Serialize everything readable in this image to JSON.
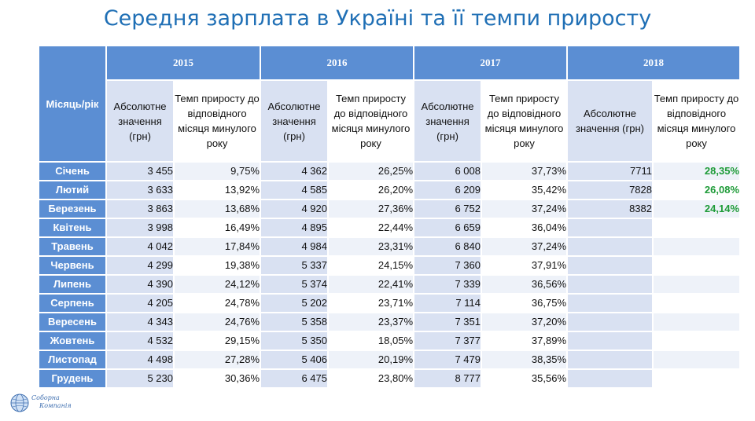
{
  "title": "Середня зарплата в Україні та її темпи приросту",
  "header": {
    "corner": "Місяць/рік",
    "years": [
      "2015",
      "2016",
      "2017",
      "2018"
    ],
    "abs_label": "Абсолютне значення (грн)",
    "rate_label": "Темп приросту до відповідного місяця минулого року"
  },
  "rows": [
    {
      "month": "Січень",
      "c": [
        "3 455",
        "9,75%",
        "4 362",
        "26,25%",
        "6 008",
        "37,73%",
        "7711",
        "28,35%"
      ]
    },
    {
      "month": "Лютий",
      "c": [
        "3 633",
        "13,92%",
        "4 585",
        "26,20%",
        "6 209",
        "35,42%",
        "7828",
        "26,08%"
      ]
    },
    {
      "month": "Березень",
      "c": [
        "3 863",
        "13,68%",
        "4 920",
        "27,36%",
        "6 752",
        "37,24%",
        "8382",
        "24,14%"
      ]
    },
    {
      "month": "Квітень",
      "c": [
        "3 998",
        "16,49%",
        "4 895",
        "22,44%",
        "6 659",
        "36,04%",
        "",
        ""
      ]
    },
    {
      "month": "Травень",
      "c": [
        "4 042",
        "17,84%",
        "4 984",
        "23,31%",
        "6 840",
        "37,24%",
        "",
        ""
      ]
    },
    {
      "month": "Червень",
      "c": [
        "4 299",
        "19,38%",
        "5 337",
        "24,15%",
        "7 360",
        "37,91%",
        "",
        ""
      ]
    },
    {
      "month": "Липень",
      "c": [
        "4 390",
        "24,12%",
        "5 374",
        "22,41%",
        "7 339",
        "36,56%",
        "",
        ""
      ]
    },
    {
      "month": "Серпень",
      "c": [
        "4 205",
        "24,78%",
        "5 202",
        "23,71%",
        "7 114",
        "36,75%",
        "",
        ""
      ]
    },
    {
      "month": "Вересень",
      "c": [
        "4 343",
        "24,76%",
        "5 358",
        "23,37%",
        "7 351",
        "37,20%",
        "",
        ""
      ]
    },
    {
      "month": "Жовтень",
      "c": [
        "4 532",
        "29,15%",
        "5 350",
        "18,05%",
        "7 377",
        "37,89%",
        "",
        ""
      ]
    },
    {
      "month": "Листопад",
      "c": [
        "4 498",
        "27,28%",
        "5 406",
        "20,19%",
        "7 479",
        "38,35%",
        "",
        ""
      ]
    },
    {
      "month": "Грудень",
      "c": [
        "5 230",
        "30,36%",
        "6 475",
        "23,80%",
        "8 777",
        "35,56%",
        "",
        ""
      ]
    }
  ],
  "logo": {
    "line1": "Соборна",
    "line2": "Компанія"
  },
  "colors": {
    "header": "#5b8ed3",
    "abs_fill": "#d9e1f2",
    "accent_green": "#1e9b38",
    "title": "#1f6fb5"
  }
}
